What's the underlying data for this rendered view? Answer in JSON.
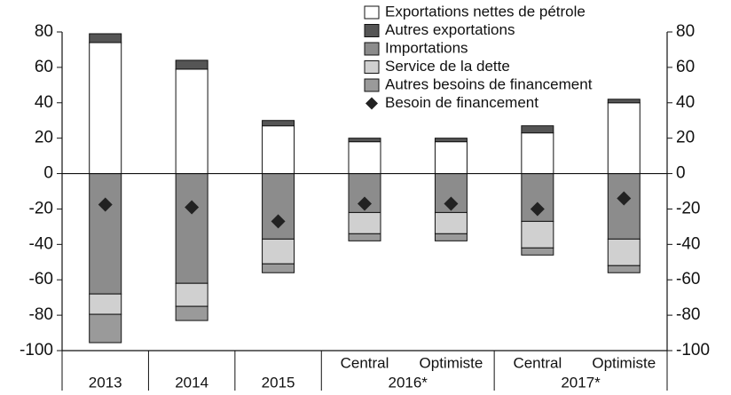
{
  "chart_data": {
    "type": "bar",
    "categories": [
      "2013",
      "2014",
      "2015",
      "Central",
      "Optimiste",
      "Central",
      "Optimiste"
    ],
    "groups": [
      {
        "name": "2016*",
        "categories": [
          3,
          4
        ]
      },
      {
        "name": "2017*",
        "categories": [
          5,
          6
        ]
      }
    ],
    "series": [
      {
        "name": "Exportations nettes de pétrole",
        "color": "#ffffff",
        "values": [
          74,
          59,
          27,
          18,
          18,
          23,
          40
        ]
      },
      {
        "name": "Autres exportations",
        "color": "#555555",
        "values": [
          5,
          5,
          3,
          2,
          2,
          4,
          2
        ]
      },
      {
        "name": "Importations",
        "color": "#8c8c8c",
        "values": [
          -68,
          -62,
          -37,
          -22,
          -22,
          -27,
          -37
        ]
      },
      {
        "name": "Service de la dette",
        "color": "#d0d0d0",
        "values": [
          -11.5,
          -13,
          -14,
          -12,
          -12,
          -15,
          -15
        ]
      },
      {
        "name": "Autres besoins de financement",
        "color": "#9a9a9a",
        "values": [
          -16,
          -8,
          -5,
          -4,
          -4,
          -4,
          -4
        ]
      },
      {
        "name": "Besoin de financement",
        "color": "#222222",
        "marker": "diamond",
        "values": [
          -17.5,
          -19,
          -27,
          -17,
          -17,
          -20,
          -14
        ]
      }
    ],
    "ylim": [
      -100,
      80
    ],
    "yticks": [
      -100,
      -80,
      -60,
      -40,
      -20,
      0,
      20,
      40,
      60,
      80
    ],
    "y2lim": [
      -100,
      80
    ],
    "y2ticks": [
      -100,
      -80,
      -60,
      -40,
      -20,
      0,
      20,
      40,
      60,
      80
    ],
    "grid": false,
    "legend": "top"
  }
}
